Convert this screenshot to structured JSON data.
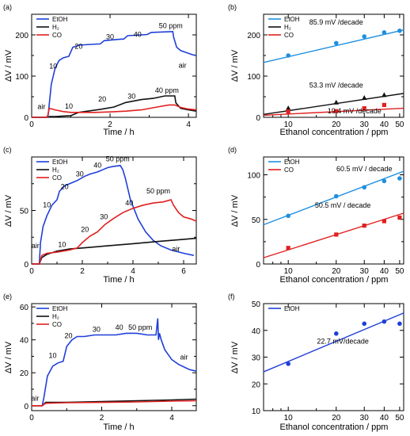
{
  "chart_data": [
    {
      "panel": "(a)",
      "type": "line",
      "xlabel": "Time / h",
      "ylabel": "ΔV / mV",
      "xlim": [
        0,
        4.2
      ],
      "ylim": [
        0,
        250
      ],
      "xticks": [
        0,
        2,
        4
      ],
      "xticks_minor": [
        1,
        3
      ],
      "yticks": [
        0,
        100,
        200
      ],
      "yticks_minor": [
        50,
        150,
        250
      ],
      "legend": "top-left",
      "series": [
        {
          "name": "EtOH",
          "color": "#1f3fd8",
          "x": [
            0,
            0.38,
            0.42,
            0.5,
            0.6,
            0.7,
            0.8,
            0.95,
            1.05,
            1.2,
            1.5,
            1.75,
            1.85,
            2.2,
            2.35,
            2.45,
            2.8,
            2.95,
            3.05,
            3.6,
            3.62,
            3.7,
            3.8,
            3.95,
            4.1,
            4.2
          ],
          "y": [
            0,
            0,
            5,
            80,
            120,
            138,
            144,
            148,
            170,
            175,
            177,
            178,
            186,
            189,
            190,
            198,
            200,
            201,
            206,
            208,
            195,
            170,
            162,
            157,
            152,
            150
          ]
        },
        {
          "name": "H₂",
          "color": "#111111",
          "x": [
            0,
            0.4,
            0.45,
            0.6,
            0.8,
            1.0,
            1.2,
            1.5,
            1.8,
            2.1,
            2.4,
            2.8,
            3.1,
            3.4,
            3.65,
            3.68,
            3.8,
            4.0,
            4.2
          ],
          "y": [
            0,
            0,
            2,
            2,
            3,
            4,
            12,
            16,
            20,
            25,
            36,
            43,
            46,
            52,
            52,
            35,
            22,
            18,
            15
          ]
        },
        {
          "name": "CO",
          "color": "#e02020",
          "x": [
            0,
            0.4,
            0.45,
            0.6,
            0.8,
            1.0,
            1.3,
            1.6,
            2.0,
            2.4,
            2.8,
            3.2,
            3.5,
            3.65,
            3.8,
            4.0,
            4.2
          ],
          "y": [
            0,
            0,
            22,
            18,
            14,
            12,
            12,
            12,
            13,
            15,
            18,
            25,
            30,
            30,
            24,
            20,
            18
          ]
        }
      ],
      "annotations": [
        {
          "text": "10",
          "x": 0.55,
          "y": 118
        },
        {
          "text": "20",
          "x": 1.2,
          "y": 166
        },
        {
          "text": "30",
          "x": 2.0,
          "y": 189
        },
        {
          "text": "40",
          "x": 2.7,
          "y": 195
        },
        {
          "text": "50 ppm",
          "x": 3.55,
          "y": 216
        },
        {
          "text": "air",
          "x": 3.85,
          "y": 120
        },
        {
          "text": "air",
          "x": 0.25,
          "y": 20
        },
        {
          "text": "10",
          "x": 0.95,
          "y": 21
        },
        {
          "text": "20",
          "x": 1.8,
          "y": 38
        },
        {
          "text": "30",
          "x": 2.55,
          "y": 45
        },
        {
          "text": "40 ppm",
          "x": 3.45,
          "y": 60
        }
      ]
    },
    {
      "panel": "(b)",
      "type": "scatter",
      "xlabel": "Ethanol concentration / ppm",
      "ylabel": "ΔV / mV",
      "xscale": "log",
      "xlim": [
        7,
        53
      ],
      "ylim": [
        0,
        250
      ],
      "xticks": [
        10,
        20,
        30,
        40,
        50
      ],
      "yticks": [
        0,
        100,
        200
      ],
      "yticks_minor": [
        50,
        150,
        250
      ],
      "legend": "top-left",
      "series": [
        {
          "name": "EtOH",
          "color": "#1f8fe0",
          "marker": "circle",
          "x": [
            10,
            20,
            30,
            40,
            50
          ],
          "y": [
            150,
            180,
            196,
            206,
            210
          ],
          "fit": {
            "x": [
              7,
              53
            ],
            "y": [
              133,
              212
            ]
          }
        },
        {
          "name": "H₂",
          "color": "#111111",
          "marker": "triangle",
          "x": [
            10,
            20,
            30,
            40
          ],
          "y": [
            22,
            36,
            47,
            54
          ],
          "fit": {
            "x": [
              7,
              53
            ],
            "y": [
              7,
              58
            ]
          }
        },
        {
          "name": "CO",
          "color": "#e02020",
          "marker": "square",
          "x": [
            10,
            20,
            30,
            40
          ],
          "y": [
            14,
            15,
            22,
            30
          ],
          "fit": {
            "x": [
              7,
              53
            ],
            "y": [
              5,
              22
            ]
          }
        }
      ],
      "annotations": [
        {
          "text": "85.9 mV /decade",
          "x": 20,
          "y": 225
        },
        {
          "text": "53.3 mV /decade",
          "x": 20,
          "y": 72
        },
        {
          "text": "19.4 mV /decade",
          "x": 26,
          "y": 10
        }
      ]
    },
    {
      "panel": "(c)",
      "type": "line",
      "xlabel": "Time / h",
      "ylabel": "ΔV / mV",
      "xlim": [
        0,
        6.5
      ],
      "ylim": [
        0,
        100
      ],
      "xticks": [
        0,
        2,
        4,
        6
      ],
      "xticks_minor": [
        1,
        3,
        5
      ],
      "yticks": [
        0,
        50
      ],
      "yticks_minor": [
        25,
        75
      ],
      "legend": "top-left",
      "series": [
        {
          "name": "EtOH",
          "color": "#1f3fd8",
          "x": [
            0,
            0.3,
            0.35,
            0.45,
            0.6,
            0.8,
            1.0,
            1.1,
            1.3,
            1.6,
            1.8,
            2.1,
            2.3,
            2.6,
            2.8,
            3.0,
            3.2,
            3.5,
            3.6,
            3.7,
            3.9,
            4.2,
            4.5,
            4.8,
            5.1,
            5.5,
            6.0,
            6.4
          ],
          "y": [
            0,
            0,
            20,
            35,
            45,
            55,
            60,
            68,
            73,
            76,
            78,
            82,
            84,
            86,
            88,
            90,
            91,
            92,
            88,
            80,
            60,
            42,
            30,
            22,
            17,
            13,
            10,
            8
          ]
        },
        {
          "name": "H₂",
          "color": "#111111",
          "x": [
            0,
            0.3,
            0.4,
            0.6,
            1.0,
            1.5,
            2.0,
            3.0,
            4.0,
            5.0,
            6.0,
            6.5
          ],
          "y": [
            0,
            0,
            6,
            9,
            12,
            14,
            15,
            17,
            19,
            21,
            23,
            24
          ]
        },
        {
          "name": "CO",
          "color": "#e02020",
          "x": [
            0,
            0.3,
            0.4,
            0.6,
            1.0,
            1.5,
            1.8,
            2.0,
            2.3,
            2.6,
            2.9,
            3.2,
            3.6,
            4.0,
            4.4,
            4.8,
            5.2,
            5.5,
            5.6,
            5.8,
            6.0,
            6.3,
            6.5
          ],
          "y": [
            0,
            0,
            8,
            10,
            11,
            13,
            15,
            20,
            26,
            30,
            37,
            42,
            48,
            52,
            55,
            57,
            58,
            60,
            55,
            48,
            44,
            42,
            40
          ]
        }
      ],
      "annotations": [
        {
          "text": "10",
          "x": 0.6,
          "y": 53
        },
        {
          "text": "20",
          "x": 1.3,
          "y": 70
        },
        {
          "text": "30",
          "x": 1.9,
          "y": 82
        },
        {
          "text": "40",
          "x": 2.6,
          "y": 90
        },
        {
          "text": "50 ppm",
          "x": 3.4,
          "y": 96
        },
        {
          "text": "air",
          "x": 0.15,
          "y": 15
        },
        {
          "text": "10",
          "x": 1.2,
          "y": 16
        },
        {
          "text": "20",
          "x": 2.1,
          "y": 30
        },
        {
          "text": "30",
          "x": 2.85,
          "y": 42
        },
        {
          "text": "40",
          "x": 3.85,
          "y": 55
        },
        {
          "text": "50 ppm",
          "x": 5.0,
          "y": 66
        },
        {
          "text": "air",
          "x": 5.7,
          "y": 12
        }
      ]
    },
    {
      "panel": "(d)",
      "type": "scatter",
      "xlabel": "Ethanol concentration / ppm",
      "ylabel": "ΔV / mV",
      "xscale": "log",
      "xlim": [
        7,
        53
      ],
      "ylim": [
        0,
        120
      ],
      "xticks": [
        10,
        20,
        30,
        40,
        50
      ],
      "yticks": [
        0,
        50,
        100
      ],
      "yticks_minor": [
        25,
        75
      ],
      "legend": "top-left",
      "series": [
        {
          "name": "EtOH",
          "color": "#1f8fe0",
          "marker": "circle",
          "x": [
            10,
            20,
            30,
            40,
            50
          ],
          "y": [
            54,
            76,
            86,
            93,
            96
          ],
          "fit": {
            "x": [
              7,
              53
            ],
            "y": [
              44,
              104
            ]
          }
        },
        {
          "name": "CO",
          "color": "#e02020",
          "marker": "square",
          "x": [
            10,
            20,
            30,
            40,
            50
          ],
          "y": [
            18,
            33,
            43,
            48,
            52
          ],
          "fit": {
            "x": [
              7,
              53
            ],
            "y": [
              7,
              57
            ]
          }
        }
      ],
      "annotations": [
        {
          "text": "60.5 mV / decade",
          "x": 30,
          "y": 104
        },
        {
          "text": "50.5 mV / decade",
          "x": 22,
          "y": 63
        }
      ]
    },
    {
      "panel": "(e)",
      "type": "line",
      "xlabel": "Time / h",
      "ylabel": "ΔV / mV",
      "xlim": [
        0,
        4.7
      ],
      "ylim": [
        -3,
        62
      ],
      "xticks": [
        0,
        2,
        4
      ],
      "xticks_minor": [
        1,
        3
      ],
      "yticks": [
        0,
        20,
        40,
        60
      ],
      "yticks_minor": [
        10,
        30,
        50
      ],
      "legend": "top-left",
      "series": [
        {
          "name": "EtOH",
          "color": "#1f3fd8",
          "x": [
            0,
            0.3,
            0.35,
            0.45,
            0.6,
            0.75,
            0.9,
            1.0,
            1.15,
            1.3,
            1.5,
            1.8,
            2.1,
            2.4,
            2.7,
            3.0,
            3.3,
            3.55,
            3.6,
            3.62,
            3.65,
            3.7,
            3.8,
            4.0,
            4.2,
            4.5,
            4.7
          ],
          "y": [
            0,
            0,
            5,
            18,
            24,
            26,
            27,
            36,
            40,
            42,
            42,
            43,
            43,
            43,
            44,
            44,
            43,
            43,
            53,
            40,
            44,
            40,
            34,
            28,
            25,
            22,
            21
          ]
        },
        {
          "name": "H₂",
          "color": "#111111",
          "x": [
            0,
            0.3,
            0.4,
            1.0,
            2.0,
            3.0,
            4.0,
            4.7
          ],
          "y": [
            0,
            0,
            2,
            2,
            2.5,
            3,
            3.5,
            4
          ]
        },
        {
          "name": "CO",
          "color": "#e02020",
          "x": [
            0,
            0.3,
            0.4,
            1.0,
            2.0,
            3.0,
            4.0,
            4.7
          ],
          "y": [
            0,
            0,
            1.5,
            1.8,
            2,
            2.3,
            2.8,
            3
          ]
        }
      ],
      "annotations": [
        {
          "text": "10",
          "x": 0.6,
          "y": 29
        },
        {
          "text": "20",
          "x": 1.05,
          "y": 41
        },
        {
          "text": "30",
          "x": 1.85,
          "y": 45
        },
        {
          "text": "40",
          "x": 2.5,
          "y": 46
        },
        {
          "text": "50 ppm",
          "x": 3.1,
          "y": 46
        },
        {
          "text": "air",
          "x": 0.1,
          "y": 3
        },
        {
          "text": "air",
          "x": 4.35,
          "y": 28
        }
      ]
    },
    {
      "panel": "(f)",
      "type": "scatter",
      "xlabel": "Ethanol concentration / ppm",
      "ylabel": "ΔV / mV",
      "xscale": "log",
      "xlim": [
        7,
        53
      ],
      "ylim": [
        10,
        50
      ],
      "xticks": [
        10,
        20,
        30,
        40,
        50
      ],
      "yticks": [
        10,
        20,
        30,
        40,
        50
      ],
      "legend": "top-left",
      "series": [
        {
          "name": "EtOH",
          "color": "#1f3fd8",
          "marker": "circle",
          "x": [
            10,
            20,
            30,
            40,
            50
          ],
          "y": [
            27.5,
            38.8,
            42.5,
            43.3,
            42.5
          ],
          "fit": {
            "x": [
              7,
              53
            ],
            "y": [
              24.5,
              46.5
            ]
          }
        }
      ],
      "annotations": [
        {
          "text": "22.7 mV/decade",
          "x": 22,
          "y": 35
        }
      ]
    }
  ]
}
